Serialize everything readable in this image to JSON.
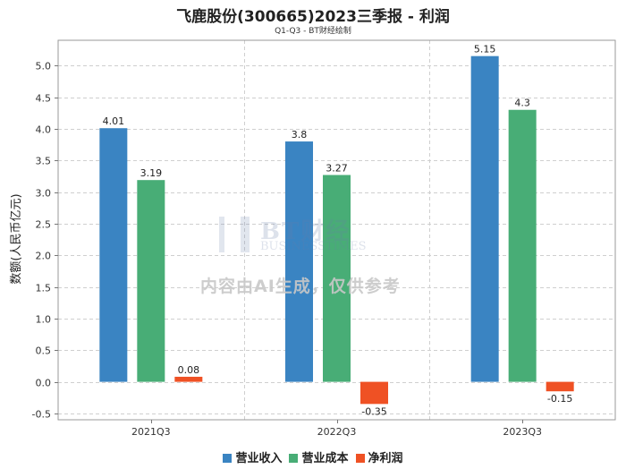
{
  "chart_data": {
    "type": "bar",
    "title": "飞鹿股份(300665)2023三季报 - 利润",
    "subtitle": "Q1-Q3 - BT财经绘制",
    "xlabel": "",
    "ylabel": "数额(人民币亿元)",
    "ylim": [
      -0.6,
      5.4
    ],
    "yticks": [
      "5.0",
      "4.5",
      "4.0",
      "3.5",
      "3.0",
      "2.5",
      "2.0",
      "1.5",
      "1.0",
      "0.5",
      "0.0",
      "-0.5"
    ],
    "categories": [
      "2021Q3",
      "2022Q3",
      "2023Q3"
    ],
    "series": [
      {
        "name": "营业收入",
        "color": "#3a84c2",
        "values": [
          4.01,
          3.8,
          5.15
        ],
        "labels": [
          "4.01",
          "3.8",
          "5.15"
        ]
      },
      {
        "name": "营业成本",
        "color": "#48ad76",
        "values": [
          3.19,
          3.27,
          4.3
        ],
        "labels": [
          "3.19",
          "3.27",
          "4.3"
        ]
      },
      {
        "name": "净利润",
        "color": "#ef5124",
        "values": [
          0.08,
          -0.35,
          -0.15
        ],
        "labels": [
          "0.08",
          "-0.35",
          "-0.15"
        ]
      }
    ],
    "legend_position": "bottom"
  },
  "watermark": {
    "brand": "BT财经",
    "brand_sub": "BUSINESSTIMES",
    "notice": "内容由AI生成，仅供参考"
  }
}
